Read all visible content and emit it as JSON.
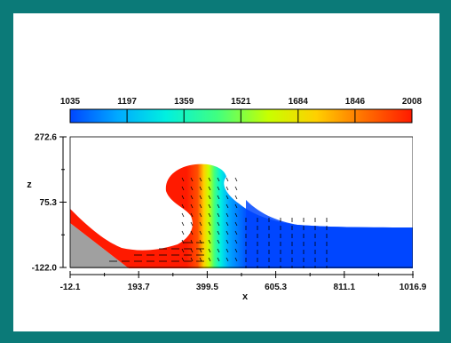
{
  "chart_data": {
    "type": "heatmap",
    "subtype": "contour-with-vectors",
    "colorbar": {
      "levels": [
        1035,
        1197,
        1359,
        1521,
        1684,
        1846,
        2008
      ],
      "labels": [
        "1035",
        "1197",
        "1359",
        "1521",
        "1684",
        "1846",
        "2008"
      ],
      "colormap": [
        "#0046ff",
        "#00b0ff",
        "#00f0e0",
        "#40ff80",
        "#c8ff00",
        "#ffd000",
        "#ff6000",
        "#ff1a00"
      ]
    },
    "xaxis": {
      "label": "x",
      "ticks": [
        "-12.1",
        "193.7",
        "399.5",
        "605.3",
        "811.1",
        "1016.9"
      ],
      "tick_values": [
        -12.1,
        193.7,
        399.5,
        605.3,
        811.1,
        1016.9
      ],
      "range": [
        -12.1,
        1016.9
      ]
    },
    "yaxis": {
      "label": "z",
      "ticks": [
        "-122.0",
        "75.3",
        "272.6"
      ],
      "tick_values": [
        -122.0,
        75.3,
        272.6
      ],
      "range": [
        -122.0,
        272.6
      ]
    },
    "colors": {
      "background": "#0b7a78",
      "panel": "#ffffff",
      "slope": "#a0a0a0",
      "fluid_base": "#0046ff"
    }
  }
}
